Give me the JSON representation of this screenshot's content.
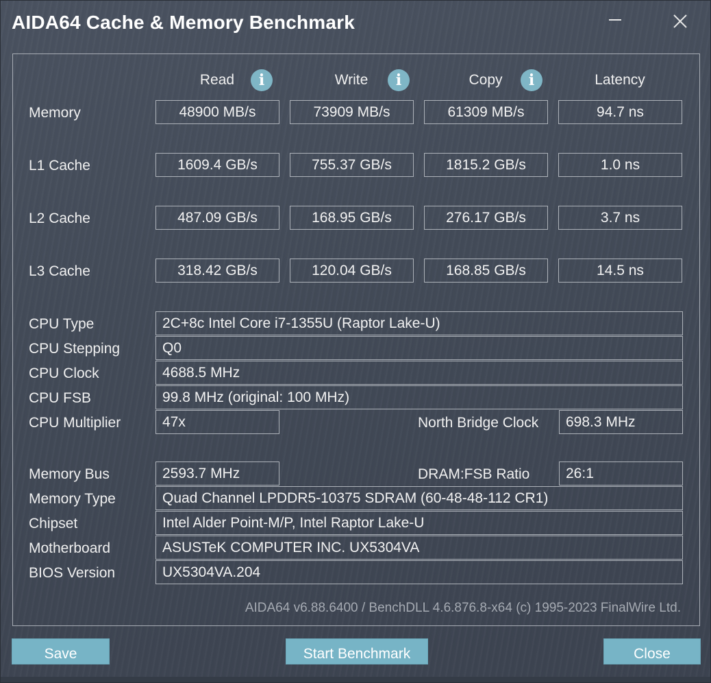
{
  "window": {
    "title": "AIDA64 Cache & Memory Benchmark"
  },
  "columns": {
    "read": "Read",
    "write": "Write",
    "copy": "Copy",
    "latency": "Latency"
  },
  "bench": [
    {
      "label": "Memory",
      "read": "48900 MB/s",
      "write": "73909 MB/s",
      "copy": "61309 MB/s",
      "latency": "94.7 ns"
    },
    {
      "label": "L1 Cache",
      "read": "1609.4 GB/s",
      "write": "755.37 GB/s",
      "copy": "1815.2 GB/s",
      "latency": "1.0 ns"
    },
    {
      "label": "L2 Cache",
      "read": "487.09 GB/s",
      "write": "168.95 GB/s",
      "copy": "276.17 GB/s",
      "latency": "3.7 ns"
    },
    {
      "label": "L3 Cache",
      "read": "318.42 GB/s",
      "write": "120.04 GB/s",
      "copy": "168.85 GB/s",
      "latency": "14.5 ns"
    }
  ],
  "cpu": {
    "type_label": "CPU Type",
    "type": "2C+8c Intel Core i7-1355U  (Raptor Lake-U)",
    "stepping_label": "CPU Stepping",
    "stepping": "Q0",
    "clock_label": "CPU Clock",
    "clock": "4688.5 MHz",
    "fsb_label": "CPU FSB",
    "fsb": "99.8 MHz  (original: 100 MHz)",
    "multiplier_label": "CPU Multiplier",
    "multiplier": "47x",
    "nb_clock_label": "North Bridge Clock",
    "nb_clock": "698.3 MHz"
  },
  "memory": {
    "bus_label": "Memory Bus",
    "bus": "2593.7 MHz",
    "ratio_label": "DRAM:FSB Ratio",
    "ratio": "26:1",
    "type_label": "Memory Type",
    "type": "Quad Channel LPDDR5-10375 SDRAM  (60-48-48-112 CR1)",
    "chipset_label": "Chipset",
    "chipset": "Intel Alder Point-M/P, Intel Raptor Lake-U",
    "motherboard_label": "Motherboard",
    "motherboard": "ASUSTeK COMPUTER INC. UX5304VA",
    "bios_label": "BIOS Version",
    "bios": "UX5304VA.204"
  },
  "footer": {
    "version": "AIDA64 v6.88.6400 / BenchDLL 4.6.876.8-x64  (c) 1995-2023 FinalWire Ltd."
  },
  "buttons": {
    "save": "Save",
    "start": "Start Benchmark",
    "close": "Close"
  },
  "icons": {
    "info": "info-icon",
    "minimize": "minimize-icon",
    "close": "close-icon"
  },
  "info_glyph": "i"
}
